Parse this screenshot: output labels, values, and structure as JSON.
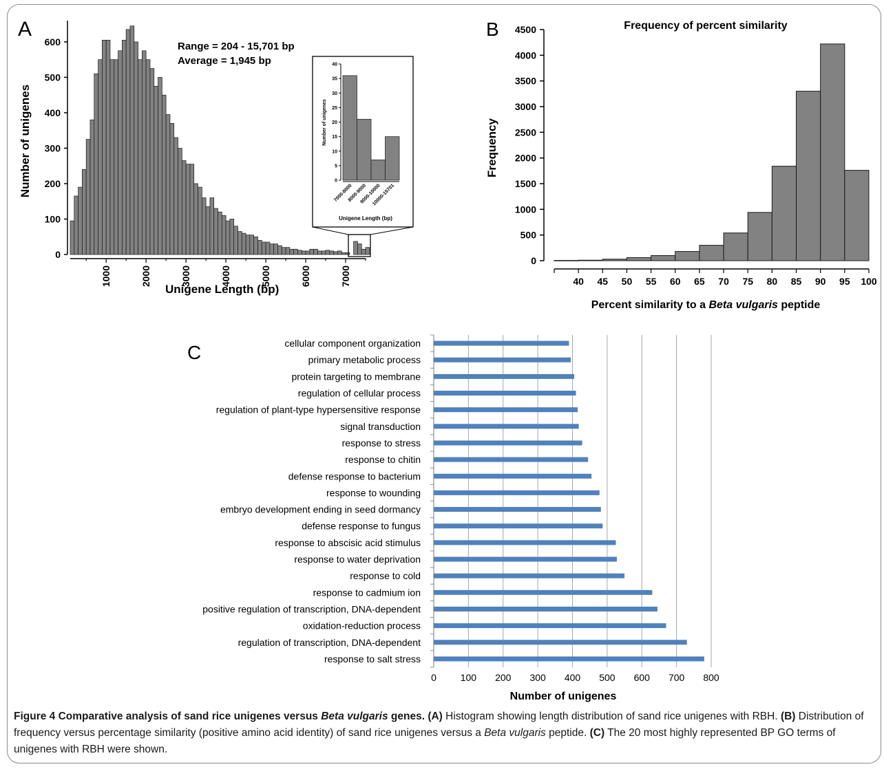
{
  "chart_data": [
    {
      "type": "bar",
      "panel_label": "A",
      "annotations": [
        "Range = 204 - 15,701 bp",
        "Average = 1,945 bp"
      ],
      "xlabel": "Unigene Length (bp)",
      "ylabel": "Number of unigenes",
      "xlim": [
        100,
        7500
      ],
      "ylim": [
        0,
        660
      ],
      "xticks": [
        "1000",
        "2000",
        "3000",
        "4000",
        "5000",
        "6000",
        "7000"
      ],
      "yticks": [
        "0",
        "100",
        "200",
        "300",
        "400",
        "500",
        "600"
      ],
      "bin_width": 100,
      "bin_start": 100,
      "values": [
        95,
        165,
        190,
        240,
        325,
        380,
        510,
        550,
        605,
        605,
        550,
        550,
        575,
        605,
        635,
        645,
        600,
        550,
        575,
        550,
        525,
        475,
        500,
        450,
        395,
        370,
        330,
        300,
        265,
        255,
        255,
        200,
        190,
        160,
        135,
        160,
        130,
        120,
        110,
        95,
        100,
        80,
        65,
        60,
        55,
        55,
        50,
        40,
        35,
        35,
        30,
        30,
        25,
        20,
        20,
        15,
        15,
        12,
        10,
        10,
        15,
        15,
        10,
        10,
        12,
        10,
        8,
        10,
        5,
        5,
        0,
        37,
        30,
        15,
        20
      ],
      "inset": {
        "type": "bar",
        "xlabel": "Unigene Length (bp)",
        "ylabel": "Number of unigenes",
        "categories": [
          "7000-8000",
          "8000-9000",
          "9000-10000",
          "10000-15701"
        ],
        "values": [
          36,
          21,
          7,
          15
        ],
        "ylim": [
          0,
          40
        ],
        "yticks": [
          "0",
          "5",
          "10",
          "15",
          "20",
          "25",
          "30",
          "35",
          "40"
        ]
      }
    },
    {
      "type": "bar",
      "panel_label": "B",
      "title": "Frequency of percent similarity",
      "xlabel_parts": [
        "Percent similarity to a ",
        "Beta vulgaris",
        " peptide"
      ],
      "ylabel": "Frequency",
      "xlim": [
        35,
        100
      ],
      "ylim": [
        0,
        4500
      ],
      "xticks": [
        "40",
        "45",
        "50",
        "55",
        "60",
        "65",
        "70",
        "75",
        "80",
        "85",
        "90",
        "95",
        "100"
      ],
      "yticks": [
        "0",
        "500",
        "1000",
        "1500",
        "2000",
        "2500",
        "3000",
        "3500",
        "4000",
        "4500"
      ],
      "bin_edges": [
        35,
        40,
        45,
        50,
        55,
        60,
        65,
        70,
        75,
        80,
        85,
        90,
        95,
        100
      ],
      "values": [
        5,
        10,
        30,
        60,
        100,
        180,
        300,
        540,
        940,
        1840,
        3300,
        4220,
        1760
      ]
    },
    {
      "type": "bar",
      "orientation": "horizontal",
      "panel_label": "C",
      "xlabel": "Number of unigenes",
      "xlim": [
        0,
        800
      ],
      "xticks": [
        "0",
        "100",
        "200",
        "300",
        "400",
        "500",
        "600",
        "700",
        "800"
      ],
      "categories": [
        "cellular component organization",
        "primary metabolic process",
        "protein targeting to membrane",
        "regulation of cellular process",
        "regulation of plant-type hypersensitive response",
        "signal transduction",
        "response to stress",
        "response to chitin",
        "defense response to bacterium",
        "response to wounding",
        "embryo development ending in seed dormancy",
        "defense response to fungus",
        "response to abscisic acid stimulus",
        "response to water deprivation",
        "response to cold",
        "response to cadmium ion",
        "positive regulation of transcription, DNA-dependent",
        "oxidation-reduction process",
        "regulation of transcription, DNA-dependent",
        "response to salt stress"
      ],
      "values": [
        390,
        395,
        405,
        410,
        415,
        418,
        428,
        445,
        455,
        478,
        482,
        487,
        525,
        528,
        550,
        630,
        645,
        670,
        730,
        780
      ],
      "colors": {
        "bars": "#4f81bd"
      }
    }
  ],
  "colors": {
    "histogram_bars": "#828282",
    "bar_outline": "#1a1a1a",
    "hbar": "#4f81bd"
  },
  "caption": {
    "figure": "Figure 4",
    "title_parts": [
      " Comparative analysis of sand rice unigenes versus ",
      "Beta vulgaris",
      " genes."
    ],
    "a_label": "(A)",
    "a_text": " Histogram showing length distribution of sand rice unigenes with RBH. ",
    "b_label": "(B)",
    "b_text_1": " Distribution of frequency versus percentage similarity (positive amino acid identity) of sand rice unigenes versus a ",
    "b_italic": "Beta vulgaris",
    "b_text_2": " peptide. ",
    "c_label": "(C)",
    "c_text": " The 20 most highly represented BP GO terms of unigenes with RBH were shown."
  }
}
